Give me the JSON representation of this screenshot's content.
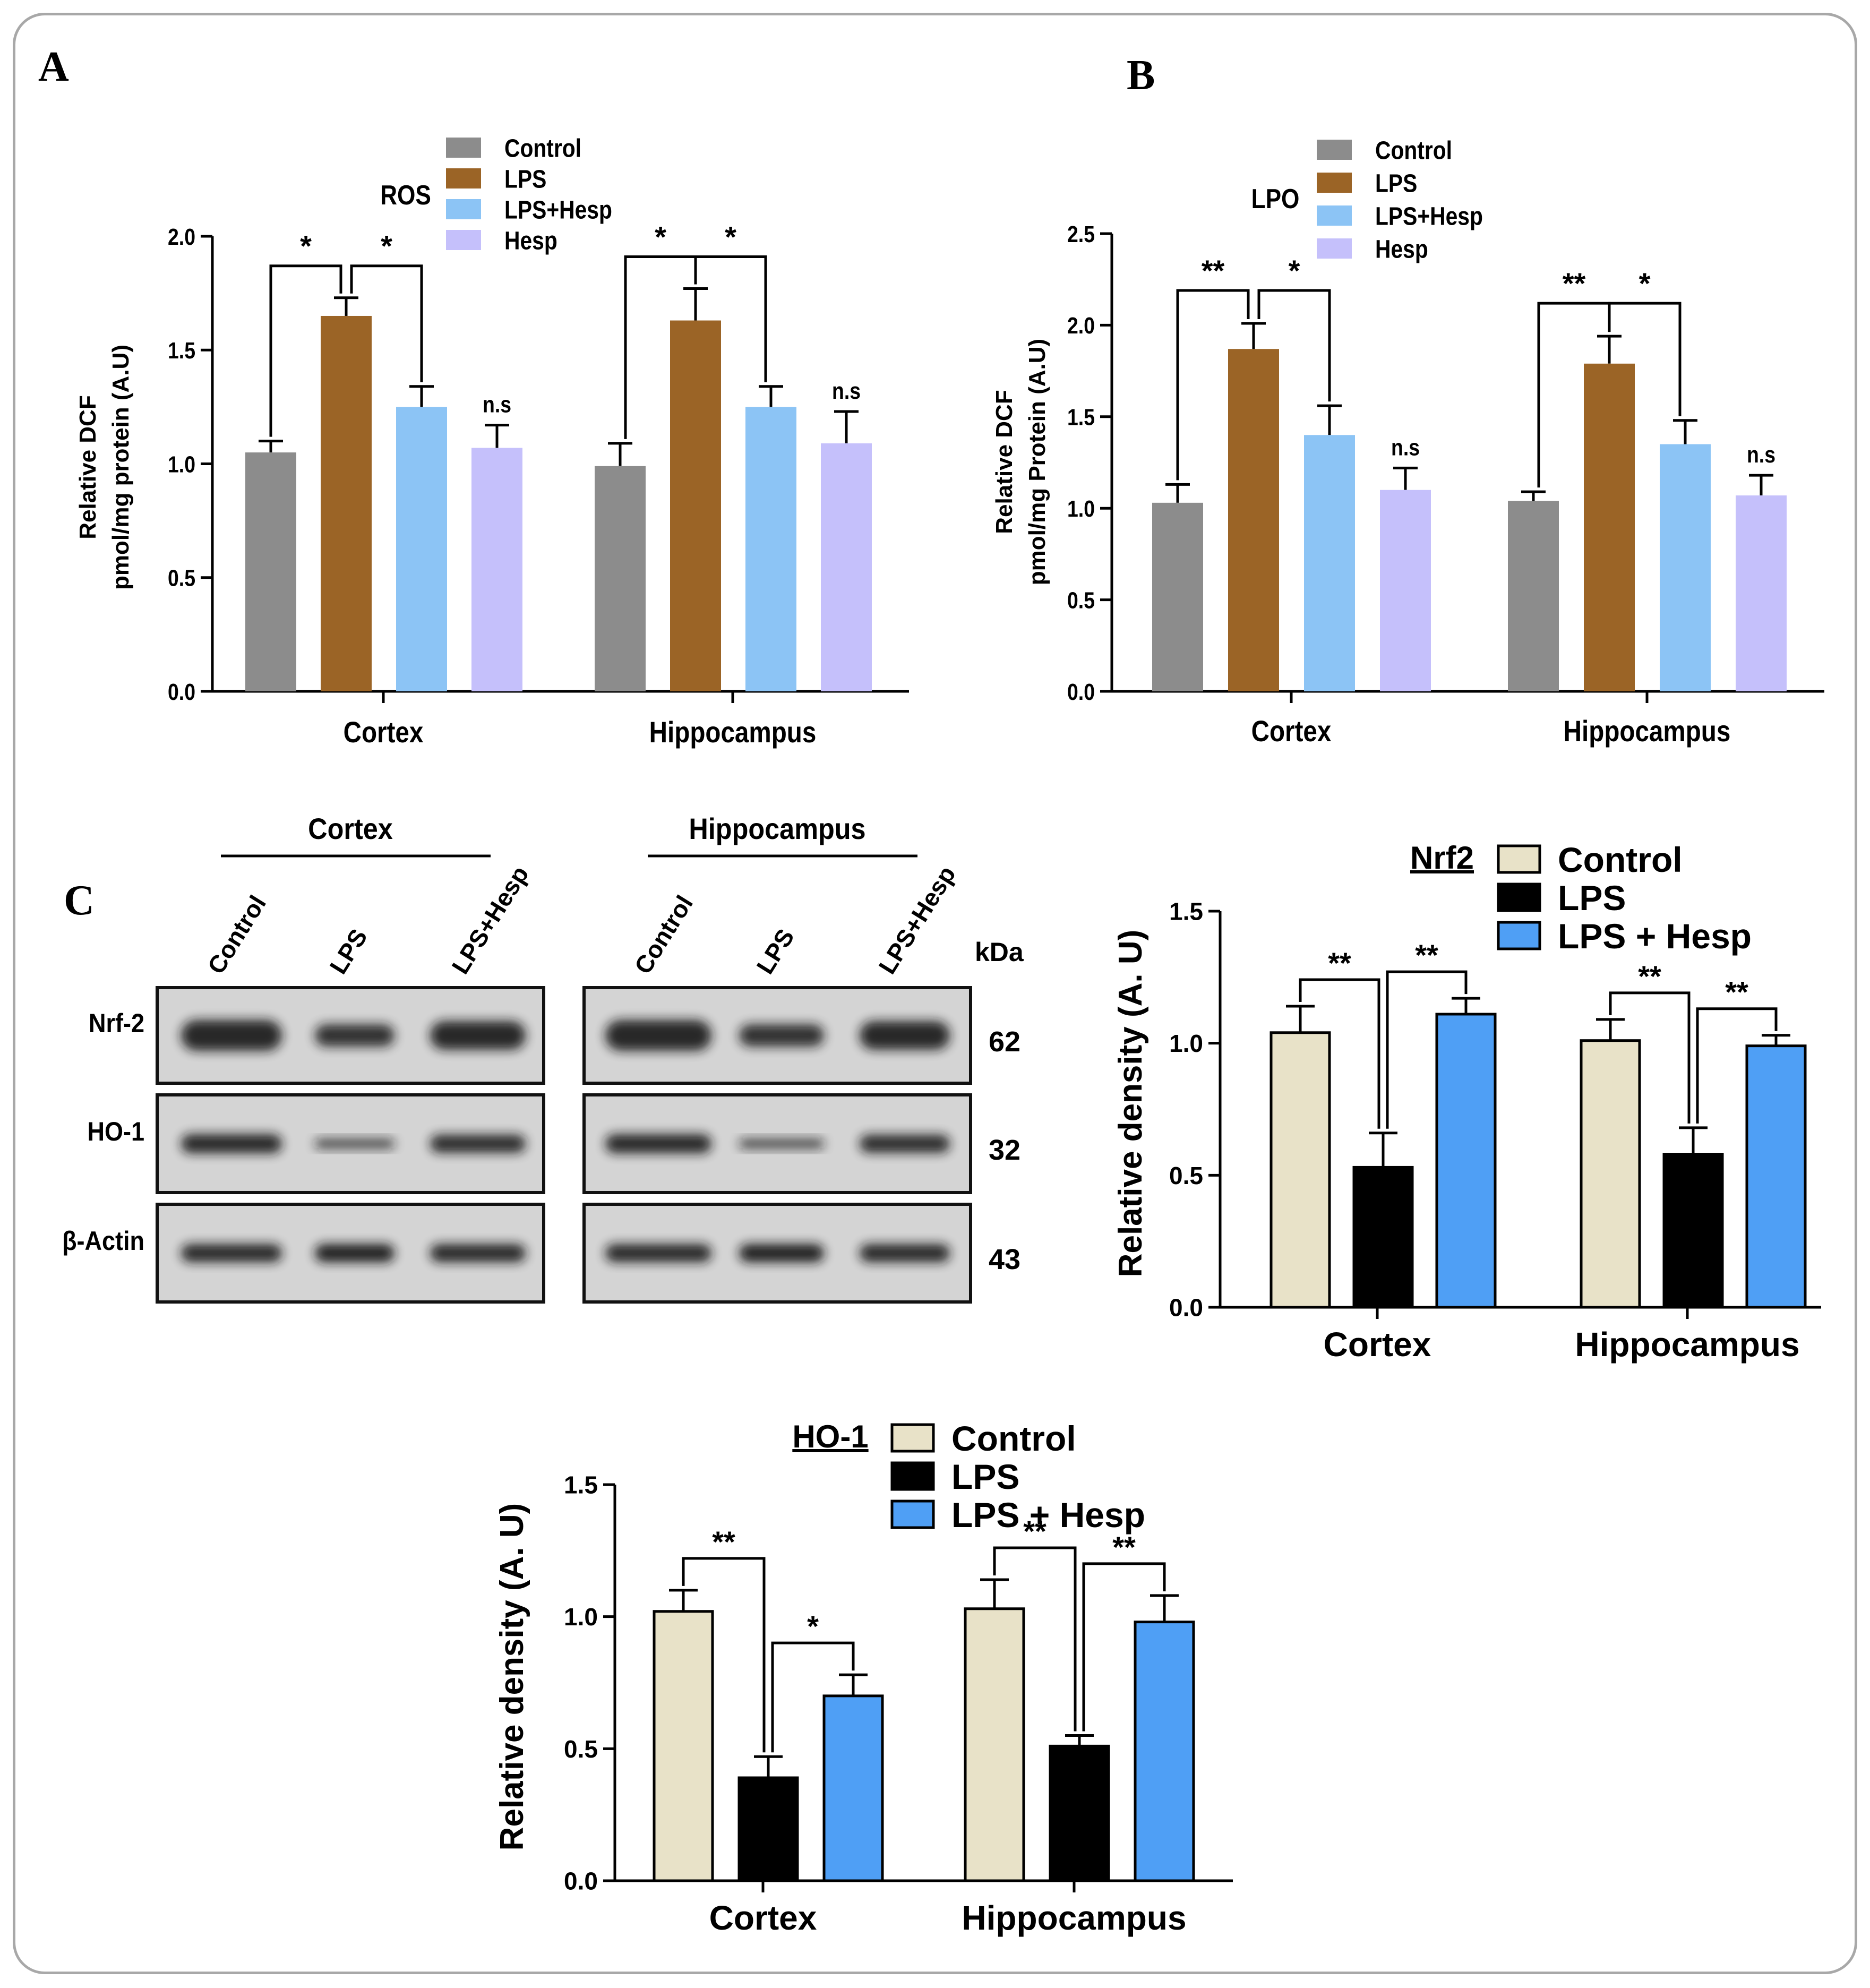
{
  "panels": {
    "a": "A",
    "b": "B",
    "c": "C"
  },
  "colors": {
    "abcd": [
      "#8c8c8c",
      "#9b6426",
      "#8cc4f5",
      "#c5c0fb"
    ],
    "c": [
      "#e8e2c8",
      "#000000",
      "#4f9ff5"
    ]
  },
  "chart_data": [
    {
      "id": "A",
      "type": "bar",
      "title": "ROS",
      "ylabel": [
        "Relative DCF",
        "pmol/mg protein (A.U)"
      ],
      "ylim": [
        0,
        2.0
      ],
      "yticks": [
        "0.0",
        "0.5",
        "1.0",
        "1.5",
        "2.0"
      ],
      "categories": [
        "Cortex",
        "Hippocampus"
      ],
      "series": [
        {
          "name": "Control",
          "values": [
            1.05,
            0.99
          ],
          "errors": [
            0.05,
            0.1
          ]
        },
        {
          "name": "LPS",
          "values": [
            1.65,
            1.63
          ],
          "errors": [
            0.08,
            0.14
          ]
        },
        {
          "name": "LPS+Hesp",
          "values": [
            1.25,
            1.25
          ],
          "errors": [
            0.09,
            0.09
          ]
        },
        {
          "name": "Hesp",
          "values": [
            1.07,
            1.09
          ],
          "errors": [
            0.1,
            0.14
          ]
        }
      ],
      "significance": [
        {
          "group": 0,
          "from": 0,
          "to": 1,
          "label": "*"
        },
        {
          "group": 0,
          "from": 1,
          "to": 2,
          "label": "*"
        },
        {
          "group": 0,
          "bar": 3,
          "label": "n.s"
        },
        {
          "group": 1,
          "from": 0,
          "to": 1,
          "label": "*"
        },
        {
          "group": 1,
          "from": 1,
          "to": 2,
          "label": "*"
        },
        {
          "group": 1,
          "bar": 3,
          "label": "n.s"
        }
      ]
    },
    {
      "id": "B",
      "type": "bar",
      "title": "LPO",
      "ylabel": [
        "Relative DCF",
        "pmol/mg Protein (A.U)"
      ],
      "ylim": [
        0,
        2.5
      ],
      "yticks": [
        "0.0",
        "0.5",
        "1.0",
        "1.5",
        "2.0",
        "2.5"
      ],
      "categories": [
        "Cortex",
        "Hippocampus"
      ],
      "series": [
        {
          "name": "Control",
          "values": [
            1.03,
            1.04
          ],
          "errors": [
            0.1,
            0.05
          ]
        },
        {
          "name": "LPS",
          "values": [
            1.87,
            1.79
          ],
          "errors": [
            0.14,
            0.15
          ]
        },
        {
          "name": "LPS+Hesp",
          "values": [
            1.4,
            1.35
          ],
          "errors": [
            0.16,
            0.13
          ]
        },
        {
          "name": "Hesp",
          "values": [
            1.1,
            1.07
          ],
          "errors": [
            0.12,
            0.11
          ]
        }
      ],
      "significance": [
        {
          "group": 0,
          "from": 0,
          "to": 1,
          "label": "**"
        },
        {
          "group": 0,
          "from": 1,
          "to": 2,
          "label": "*"
        },
        {
          "group": 0,
          "bar": 3,
          "label": "n.s"
        },
        {
          "group": 1,
          "from": 0,
          "to": 1,
          "label": "**"
        },
        {
          "group": 1,
          "from": 1,
          "to": 2,
          "label": "*"
        },
        {
          "group": 1,
          "bar": 3,
          "label": "n.s"
        }
      ]
    },
    {
      "id": "C-Nrf2",
      "type": "bar",
      "title": "Nrf2",
      "ylabel": [
        "Relative density (A. U)"
      ],
      "ylim": [
        0,
        1.5
      ],
      "yticks": [
        "0.0",
        "0.5",
        "1.0",
        "1.5"
      ],
      "categories": [
        "Cortex",
        "Hippocampus"
      ],
      "series": [
        {
          "name": "Control",
          "values": [
            1.04,
            1.01
          ],
          "errors": [
            0.1,
            0.08
          ]
        },
        {
          "name": "LPS",
          "values": [
            0.53,
            0.58
          ],
          "errors": [
            0.13,
            0.1
          ]
        },
        {
          "name": "LPS + Hesp",
          "values": [
            1.11,
            0.99
          ],
          "errors": [
            0.06,
            0.04
          ]
        }
      ],
      "significance": [
        {
          "group": 0,
          "from": 0,
          "to": 1,
          "label": "**"
        },
        {
          "group": 0,
          "from": 1,
          "to": 2,
          "label": "**"
        },
        {
          "group": 1,
          "from": 0,
          "to": 1,
          "label": "**"
        },
        {
          "group": 1,
          "from": 1,
          "to": 2,
          "label": "**"
        }
      ]
    },
    {
      "id": "C-HO-1",
      "type": "bar",
      "title": "HO-1",
      "ylabel": [
        "Relative density (A. U)"
      ],
      "ylim": [
        0,
        1.5
      ],
      "yticks": [
        "0.0",
        "0.5",
        "1.0",
        "1.5"
      ],
      "categories": [
        "Cortex",
        "Hippocampus"
      ],
      "series": [
        {
          "name": "Control",
          "values": [
            1.02,
            1.03
          ],
          "errors": [
            0.08,
            0.11
          ]
        },
        {
          "name": "LPS",
          "values": [
            0.39,
            0.51
          ],
          "errors": [
            0.08,
            0.04
          ]
        },
        {
          "name": "LPS + Hesp",
          "values": [
            0.7,
            0.98
          ],
          "errors": [
            0.08,
            0.1
          ]
        }
      ],
      "significance": [
        {
          "group": 0,
          "from": 0,
          "to": 1,
          "label": "**"
        },
        {
          "group": 0,
          "from": 1,
          "to": 2,
          "label": "*"
        },
        {
          "group": 1,
          "from": 0,
          "to": 1,
          "label": "**"
        },
        {
          "group": 1,
          "from": 1,
          "to": 2,
          "label": "**"
        }
      ]
    }
  ],
  "blot": {
    "regions": [
      "Cortex",
      "Hippocampus"
    ],
    "lanes": [
      "Control",
      "LPS",
      "LPS+Hesp"
    ],
    "kda_label": "kDa",
    "rows": [
      {
        "name": "Nrf-2",
        "kda": "62"
      },
      {
        "name": "HO-1",
        "kda": "32"
      },
      {
        "name": "β-Actin",
        "kda": "43"
      }
    ]
  }
}
